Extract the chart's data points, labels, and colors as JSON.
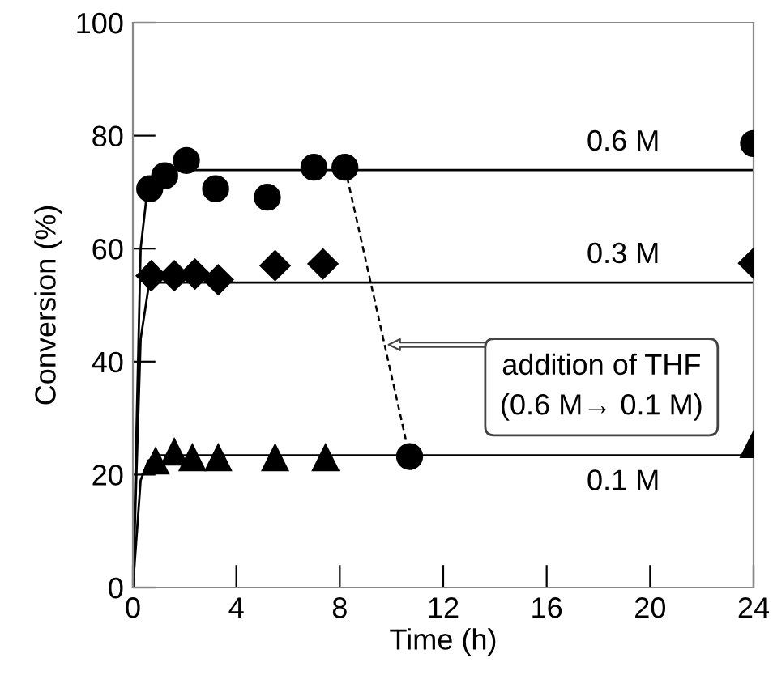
{
  "chart_data": {
    "type": "scatter",
    "xlabel": "Time (h)",
    "ylabel": "Conversion (%)",
    "xlim": [
      0,
      24
    ],
    "ylim": [
      0,
      100
    ],
    "xticks": [
      0,
      4,
      8,
      12,
      16,
      20,
      24
    ],
    "yticks": [
      0,
      20,
      40,
      60,
      80,
      100
    ],
    "grid": false,
    "legend": false,
    "series": [
      {
        "marker": "circle",
        "color": "#000000",
        "x": [
          0.65,
          1.23,
          2.07,
          3.2,
          5.2,
          7.0,
          8.2,
          10.7,
          24
        ],
        "values": [
          70.6,
          72.9,
          75.6,
          70.6,
          69.1,
          74.4,
          74.4,
          23.2,
          78.6
        ]
      },
      {
        "marker": "diamond",
        "color": "#000000",
        "x": [
          0.71,
          1.6,
          2.4,
          3.3,
          5.5,
          7.35,
          24
        ],
        "values": [
          55.2,
          55.2,
          55.5,
          54.5,
          57.0,
          57.3,
          57.4
        ]
      },
      {
        "marker": "triangle",
        "color": "#000000",
        "x": [
          0.88,
          1.6,
          2.3,
          3.3,
          5.5,
          7.45,
          24
        ],
        "values": [
          22.4,
          24.0,
          23.0,
          23.0,
          23.0,
          23.0,
          25.3
        ]
      },
      {
        "type": "line",
        "name": "0.6 M",
        "color": "#000000",
        "line_style": "solid",
        "x": [
          0,
          0.3,
          0.6,
          1,
          24
        ],
        "values": [
          0,
          60,
          72,
          73.9,
          73.9
        ]
      },
      {
        "type": "line",
        "name": "0.3 M",
        "color": "#000000",
        "line_style": "solid",
        "x": [
          0,
          0.3,
          0.6,
          1,
          24
        ],
        "values": [
          0,
          44,
          53,
          54,
          54
        ]
      },
      {
        "type": "line",
        "name": "0.1 M",
        "color": "#000000",
        "line_style": "solid",
        "x": [
          0,
          0.3,
          0.6,
          1,
          24
        ],
        "values": [
          0,
          19,
          22.5,
          23.4,
          23.4
        ]
      },
      {
        "type": "line",
        "color": "#000000",
        "line_style": "dashed",
        "x": [
          8.2,
          10.7
        ],
        "values": [
          74.4,
          23.2
        ]
      }
    ],
    "annotations": [
      "addition of THF\n(0.6 M→ 0.1 M)"
    ]
  }
}
